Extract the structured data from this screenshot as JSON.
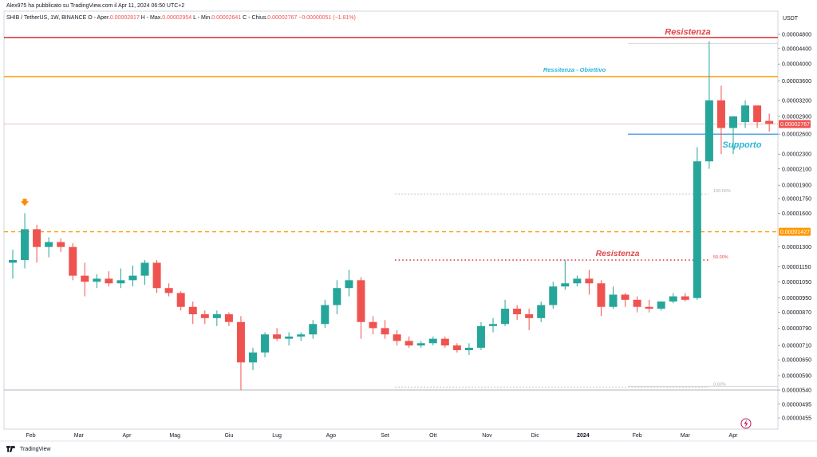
{
  "header": {
    "publisher": "Alex975 ha pubblicato su TradingView.com il Apr 11, 2024 06:50 UTC+2",
    "instrument": "SHIB / TetherUS, 1W, BINANCE",
    "ohlc": [
      {
        "label": "O - Aper.",
        "value": "0.00002817"
      },
      {
        "label": "H - Max.",
        "value": "0.00002954"
      },
      {
        "label": "L - Min.",
        "value": "0.00002641"
      },
      {
        "label": "C - Chius.",
        "value": "0.00002767"
      }
    ],
    "change": "−0.00000051 (−1.81%)"
  },
  "axis_currency": "USDT",
  "branding": "TradingView",
  "colors": {
    "up": "#26a69a",
    "down": "#ef5350",
    "resistance_line": "#d32f2f",
    "target_line": "#ff9800",
    "support_line": "#1e88e5",
    "support_text": "#29b6d6",
    "annotation_red": "#e0474c",
    "marker_orange": "#ff8a00",
    "fib_gray": "#b0b0b0",
    "lightning": "#c2185b"
  },
  "icons": [
    "arrow-down-icon",
    "lightning-icon",
    "tradingview-logo-icon"
  ],
  "chart_data": {
    "type": "candlestick",
    "y_axis": "log",
    "ylim": [
      4.2e-07,
      5.2e-06
    ],
    "y_ticks": [
      {
        "value": 4.8e-06,
        "label": "0.00004800"
      },
      {
        "value": 4.4e-06,
        "label": "0.00004400"
      },
      {
        "value": 4e-06,
        "label": "0.00004000"
      },
      {
        "value": 3.6e-06,
        "label": "0.00003600"
      },
      {
        "value": 3.2e-06,
        "label": "0.00003200"
      },
      {
        "value": 2.9e-06,
        "label": "0.00002900"
      },
      {
        "value": 2.6e-06,
        "label": "0.00002600"
      },
      {
        "value": 2.3e-06,
        "label": "0.00002300"
      },
      {
        "value": 2.1e-06,
        "label": "0.00002100"
      },
      {
        "value": 1.9e-06,
        "label": "0.00001900"
      },
      {
        "value": 1.75e-06,
        "label": "0.00001750"
      },
      {
        "value": 1.6e-06,
        "label": "0.00001600"
      },
      {
        "value": 1.3e-06,
        "label": "0.00001300"
      },
      {
        "value": 1.15e-06,
        "label": "0.00001150"
      },
      {
        "value": 1.05e-06,
        "label": "0.00001050"
      },
      {
        "value": 9.5e-07,
        "label": "0.00000950"
      },
      {
        "value": 8.7e-07,
        "label": "0.00000870"
      },
      {
        "value": 7.9e-07,
        "label": "0.00000790"
      },
      {
        "value": 7.1e-07,
        "label": "0.00000710"
      },
      {
        "value": 6.5e-07,
        "label": "0.00000650"
      },
      {
        "value": 5.9e-07,
        "label": "0.00000590"
      },
      {
        "value": 5.4e-07,
        "label": "0.00000540"
      },
      {
        "value": 4.95e-07,
        "label": "0.00000495"
      },
      {
        "value": 4.55e-07,
        "label": "0.00000455"
      }
    ],
    "x_labels": [
      {
        "index": 1.5,
        "label": "Feb",
        "bold": false
      },
      {
        "index": 5.5,
        "label": "Mar",
        "bold": false
      },
      {
        "index": 9.5,
        "label": "Apr",
        "bold": false
      },
      {
        "index": 13.5,
        "label": "Mag",
        "bold": false
      },
      {
        "index": 18,
        "label": "Giu",
        "bold": false
      },
      {
        "index": 22,
        "label": "Lug",
        "bold": false
      },
      {
        "index": 26.5,
        "label": "Ago",
        "bold": false
      },
      {
        "index": 31,
        "label": "Set",
        "bold": false
      },
      {
        "index": 35,
        "label": "Ott",
        "bold": false
      },
      {
        "index": 39.5,
        "label": "Nov",
        "bold": false
      },
      {
        "index": 43.5,
        "label": "Dic",
        "bold": false
      },
      {
        "index": 47.5,
        "label": "2024",
        "bold": true
      },
      {
        "index": 52,
        "label": "Feb",
        "bold": false
      },
      {
        "index": 56,
        "label": "Mar",
        "bold": false
      },
      {
        "index": 60,
        "label": "Apr",
        "bold": false
      }
    ],
    "candles": [
      {
        "o": 1.18e-06,
        "h": 1.28e-06,
        "l": 1.07e-06,
        "c": 1.2e-06
      },
      {
        "o": 1.2e-06,
        "h": 1.6e-06,
        "l": 1.14e-06,
        "c": 1.45e-06
      },
      {
        "o": 1.45e-06,
        "h": 1.49e-06,
        "l": 1.18e-06,
        "c": 1.3e-06
      },
      {
        "o": 1.3e-06,
        "h": 1.38e-06,
        "l": 1.22e-06,
        "c": 1.34e-06
      },
      {
        "o": 1.34e-06,
        "h": 1.37e-06,
        "l": 1.26e-06,
        "c": 1.3e-06
      },
      {
        "o": 1.3e-06,
        "h": 1.33e-06,
        "l": 1.06e-06,
        "c": 1.09e-06
      },
      {
        "o": 1.09e-06,
        "h": 1.18e-06,
        "l": 9.6e-07,
        "c": 1.05e-06
      },
      {
        "o": 1.05e-06,
        "h": 1.1e-06,
        "l": 1.01e-06,
        "c": 1.07e-06
      },
      {
        "o": 1.07e-06,
        "h": 1.12e-06,
        "l": 1.02e-06,
        "c": 1.04e-06
      },
      {
        "o": 1.04e-06,
        "h": 1.14e-06,
        "l": 1.01e-06,
        "c": 1.06e-06
      },
      {
        "o": 1.06e-06,
        "h": 1.16e-06,
        "l": 1.02e-06,
        "c": 1.09e-06
      },
      {
        "o": 1.09e-06,
        "h": 1.2e-06,
        "l": 1.03e-06,
        "c": 1.18e-06
      },
      {
        "o": 1.18e-06,
        "h": 1.2e-06,
        "l": 9.8e-07,
        "c": 1.01e-06
      },
      {
        "o": 1.01e-06,
        "h": 1.04e-06,
        "l": 9.6e-07,
        "c": 9.8e-07
      },
      {
        "o": 9.8e-07,
        "h": 9.9e-07,
        "l": 8.8e-07,
        "c": 9e-07
      },
      {
        "o": 9e-07,
        "h": 9.3e-07,
        "l": 8.1e-07,
        "c": 8.6e-07
      },
      {
        "o": 8.6e-07,
        "h": 8.8e-07,
        "l": 8.1e-07,
        "c": 8.4e-07
      },
      {
        "o": 8.4e-07,
        "h": 8.8e-07,
        "l": 8e-07,
        "c": 8.6e-07
      },
      {
        "o": 8.6e-07,
        "h": 8.7e-07,
        "l": 8e-07,
        "c": 8.2e-07
      },
      {
        "o": 8.2e-07,
        "h": 8.5e-07,
        "l": 5.4e-07,
        "c": 6.4e-07
      },
      {
        "o": 6.4e-07,
        "h": 7e-07,
        "l": 6.1e-07,
        "c": 6.8e-07
      },
      {
        "o": 6.8e-07,
        "h": 7.7e-07,
        "l": 6.6e-07,
        "c": 7.6e-07
      },
      {
        "o": 7.6e-07,
        "h": 7.9e-07,
        "l": 7.3e-07,
        "c": 7.4e-07
      },
      {
        "o": 7.4e-07,
        "h": 7.7e-07,
        "l": 7.1e-07,
        "c": 7.5e-07
      },
      {
        "o": 7.5e-07,
        "h": 7.7e-07,
        "l": 7.3e-07,
        "c": 7.6e-07
      },
      {
        "o": 7.6e-07,
        "h": 8.3e-07,
        "l": 7.4e-07,
        "c": 8.1e-07
      },
      {
        "o": 8.1e-07,
        "h": 9.4e-07,
        "l": 7.9e-07,
        "c": 9.1e-07
      },
      {
        "o": 9.1e-07,
        "h": 1.06e-06,
        "l": 8.6e-07,
        "c": 1.01e-06
      },
      {
        "o": 1.01e-06,
        "h": 1.13e-06,
        "l": 9.6e-07,
        "c": 1.06e-06
      },
      {
        "o": 1.06e-06,
        "h": 1.08e-06,
        "l": 7.4e-07,
        "c": 8.2e-07
      },
      {
        "o": 8.2e-07,
        "h": 8.5e-07,
        "l": 7.6e-07,
        "c": 7.9e-07
      },
      {
        "o": 7.9e-07,
        "h": 8.3e-07,
        "l": 7.4e-07,
        "c": 7.6e-07
      },
      {
        "o": 7.6e-07,
        "h": 7.8e-07,
        "l": 7.1e-07,
        "c": 7.3e-07
      },
      {
        "o": 7.3e-07,
        "h": 7.5e-07,
        "l": 7e-07,
        "c": 7.1e-07
      },
      {
        "o": 7.1e-07,
        "h": 7.3e-07,
        "l": 7e-07,
        "c": 7.2e-07
      },
      {
        "o": 7.2e-07,
        "h": 7.5e-07,
        "l": 7.1e-07,
        "c": 7.4e-07
      },
      {
        "o": 7.4e-07,
        "h": 7.5e-07,
        "l": 7e-07,
        "c": 7.1e-07
      },
      {
        "o": 7.1e-07,
        "h": 7.2e-07,
        "l": 6.8e-07,
        "c": 6.9e-07
      },
      {
        "o": 6.9e-07,
        "h": 7.2e-07,
        "l": 6.7e-07,
        "c": 7e-07
      },
      {
        "o": 7e-07,
        "h": 8.2e-07,
        "l": 6.9e-07,
        "c": 8e-07
      },
      {
        "o": 8e-07,
        "h": 8.4e-07,
        "l": 7.7e-07,
        "c": 8.1e-07
      },
      {
        "o": 8.1e-07,
        "h": 9.4e-07,
        "l": 8e-07,
        "c": 8.9e-07
      },
      {
        "o": 8.9e-07,
        "h": 9.1e-07,
        "l": 8.3e-07,
        "c": 8.6e-07
      },
      {
        "o": 8.6e-07,
        "h": 8.9e-07,
        "l": 7.8e-07,
        "c": 8.4e-07
      },
      {
        "o": 8.4e-07,
        "h": 9.3e-07,
        "l": 8.2e-07,
        "c": 9.1e-07
      },
      {
        "o": 9.1e-07,
        "h": 1.05e-06,
        "l": 8.9e-07,
        "c": 1.02e-06
      },
      {
        "o": 1.02e-06,
        "h": 1.2e-06,
        "l": 1e-06,
        "c": 1.04e-06
      },
      {
        "o": 1.04e-06,
        "h": 1.09e-06,
        "l": 1.02e-06,
        "c": 1.07e-06
      },
      {
        "o": 1.07e-06,
        "h": 1.13e-06,
        "l": 9.7e-07,
        "c": 1.04e-06
      },
      {
        "o": 1.04e-06,
        "h": 1.06e-06,
        "l": 8.5e-07,
        "c": 9e-07
      },
      {
        "o": 9e-07,
        "h": 1.02e-06,
        "l": 8.9e-07,
        "c": 9.7e-07
      },
      {
        "o": 9.7e-07,
        "h": 9.8e-07,
        "l": 9e-07,
        "c": 9.4e-07
      },
      {
        "o": 9.4e-07,
        "h": 9.6e-07,
        "l": 8.7e-07,
        "c": 9e-07
      },
      {
        "o": 9e-07,
        "h": 9.4e-07,
        "l": 8.7e-07,
        "c": 8.9e-07
      },
      {
        "o": 8.9e-07,
        "h": 9.3e-07,
        "l": 8.8e-07,
        "c": 9.3e-07
      },
      {
        "o": 9.3e-07,
        "h": 9.8e-07,
        "l": 9.2e-07,
        "c": 9.6e-07
      },
      {
        "o": 9.6e-07,
        "h": 9.8e-07,
        "l": 9.3e-07,
        "c": 9.4e-07
      },
      {
        "o": 9.5e-07,
        "h": 2.4e-06,
        "l": 9.4e-07,
        "c": 2.2e-06
      },
      {
        "o": 2.2e-06,
        "h": 4.6e-06,
        "l": 2.1e-06,
        "c": 3.2e-06
      },
      {
        "o": 3.2e-06,
        "h": 3.5e-06,
        "l": 2.3e-06,
        "c": 2.7e-06
      },
      {
        "o": 2.7e-06,
        "h": 2.9e-06,
        "l": 2.3e-06,
        "c": 2.9e-06
      },
      {
        "o": 2.8e-06,
        "h": 3.2e-06,
        "l": 2.7e-06,
        "c": 3.1e-06
      },
      {
        "o": 3.1e-06,
        "h": 3.1e-06,
        "l": 2.7e-06,
        "c": 2.8e-06
      },
      {
        "o": 2.82e-06,
        "h": 2.95e-06,
        "l": 2.64e-06,
        "c": 2.77e-06
      }
    ],
    "price_badges": [
      {
        "value": 2.767e-06,
        "label": "0.00002767",
        "color": "#ef5350"
      },
      {
        "value": 1.427e-06,
        "label": "0.00001427",
        "color": "#ff9800"
      }
    ],
    "annotations": {
      "resistance_top": {
        "text": "Resistenza",
        "value": 4.7e-06
      },
      "target": {
        "text": "Ressitenza - Obiettivo",
        "value": 3.7e-06
      },
      "support": {
        "text": "Supporto",
        "value": 2.6e-06
      },
      "resistance_mid": {
        "text": "Resistenza",
        "value": 1.2e-06
      },
      "orange_dashed": {
        "value": 1.427e-06
      },
      "current_price": {
        "value": 2.767e-06
      },
      "bottom_line": {
        "value": 5.4e-07
      },
      "fib_levels": [
        {
          "label": "100.00%",
          "value": 1.8e-06
        },
        {
          "label": "50.00%",
          "value": 1.2e-06
        },
        {
          "label": "0.00%",
          "value": 5.5e-07
        }
      ]
    }
  }
}
